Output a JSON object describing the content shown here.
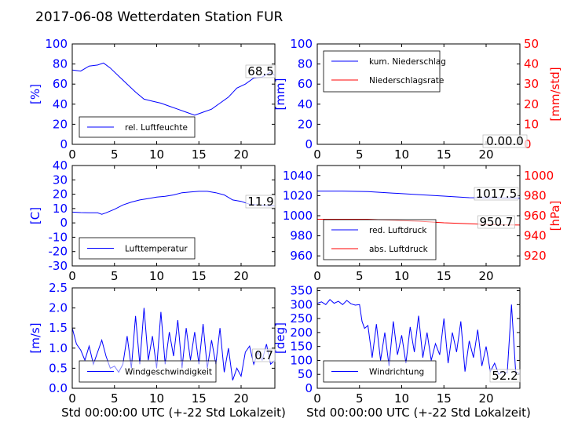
{
  "title": "2017-06-08 Wetterdaten Station FUR",
  "chart_data": [
    {
      "type": "line",
      "panel": "humidity",
      "xlim": [
        0,
        24
      ],
      "ylim": [
        0,
        100
      ],
      "xticks": [
        0,
        5,
        10,
        15,
        20
      ],
      "yticks": [
        0,
        20,
        40,
        60,
        80,
        100
      ],
      "ylabel": "[%]",
      "legend": "bottom-left",
      "last_value_label": "68.5",
      "series": [
        {
          "name": "rel. Luftfeuchte",
          "color": "#0000ff",
          "x": [
            0,
            1,
            2,
            3,
            3.7,
            4.5,
            5.5,
            6.5,
            7.5,
            8.5,
            9.5,
            10.5,
            11.5,
            12.5,
            13.5,
            14.5,
            15.5,
            16.5,
            17.5,
            18.5,
            19.5,
            20.5,
            21.5,
            22.5,
            23.5,
            24
          ],
          "y": [
            74,
            73,
            78,
            79,
            81,
            76,
            68,
            60,
            52,
            45,
            43,
            41,
            38,
            35,
            32,
            29,
            32,
            35,
            41,
            47,
            56,
            60,
            66,
            67,
            72,
            68.5
          ]
        }
      ]
    },
    {
      "type": "line",
      "panel": "precipitation",
      "xlim": [
        0,
        24
      ],
      "ylim": [
        0,
        100
      ],
      "ylim_right": [
        0,
        50
      ],
      "xticks": [
        0,
        5,
        10,
        15,
        20
      ],
      "yticks": [
        0,
        20,
        40,
        60,
        80,
        100
      ],
      "yticks_right": [
        0,
        10,
        20,
        30,
        40,
        50
      ],
      "ylabel": "[mm]",
      "ylabel_right": "[mm/std]",
      "legend": "top-left",
      "last_value_label": "0.00.0",
      "series": [
        {
          "name": "kum. Niederschlag",
          "color": "#0000ff",
          "axis": "left",
          "x": [
            0,
            24
          ],
          "y": [
            0,
            0
          ]
        },
        {
          "name": "Niederschlagsrate",
          "color": "#ff0000",
          "axis": "right",
          "x": [
            0,
            24
          ],
          "y": [
            0,
            0
          ]
        }
      ]
    },
    {
      "type": "line",
      "panel": "temperature",
      "xlim": [
        0,
        24
      ],
      "ylim": [
        -30,
        40
      ],
      "xticks": [
        0,
        5,
        10,
        15,
        20
      ],
      "yticks": [
        -30,
        -20,
        -10,
        0,
        10,
        20,
        30,
        40
      ],
      "ylabel": "[C]",
      "legend": "bottom-left",
      "last_value_label": "11.9",
      "series": [
        {
          "name": "Lufttemperatur",
          "color": "#0000ff",
          "x": [
            0,
            1,
            2,
            3,
            3.5,
            4,
            5,
            6,
            7,
            8,
            9,
            10,
            11,
            12,
            13,
            14,
            15,
            16,
            17,
            18,
            19,
            20,
            21,
            22,
            23,
            24
          ],
          "y": [
            7.5,
            7.2,
            7.0,
            7.0,
            6.0,
            7.0,
            9.5,
            12.5,
            14.5,
            16,
            17,
            18,
            18.5,
            19.5,
            21,
            21.5,
            22,
            22,
            21,
            19.5,
            16,
            15,
            13,
            12.5,
            12,
            11.9
          ]
        }
      ]
    },
    {
      "type": "line",
      "panel": "pressure",
      "xlim": [
        0,
        24
      ],
      "ylim": [
        950,
        1050
      ],
      "ylim_right": [
        910,
        1010
      ],
      "xticks": [
        0,
        5,
        10,
        15,
        20
      ],
      "yticks": [
        960,
        980,
        1000,
        1020,
        1040
      ],
      "yticks_right": [
        920,
        940,
        960,
        980,
        1000
      ],
      "ylabel_right": "[hPa]",
      "legend": "bottom-left",
      "last_value_labels": [
        "1017.5",
        "950.7"
      ],
      "series": [
        {
          "name": "red. Luftdruck",
          "color": "#0000ff",
          "axis": "left",
          "x": [
            0,
            3,
            6,
            9,
            12,
            15,
            18,
            21,
            24
          ],
          "y": [
            1024.5,
            1024.5,
            1024,
            1022.5,
            1021,
            1019.5,
            1018,
            1017.8,
            1017.5
          ]
        },
        {
          "name": "abs. Luftdruck",
          "color": "#ff0000",
          "axis": "right",
          "x": [
            0,
            3,
            6,
            9,
            12,
            15,
            18,
            21,
            24
          ],
          "y": [
            956.5,
            956.5,
            956.5,
            955.5,
            954.5,
            953,
            952,
            951,
            950.7
          ]
        }
      ]
    },
    {
      "type": "line",
      "panel": "wind-speed",
      "xlim": [
        0,
        24
      ],
      "ylim": [
        0,
        2.5
      ],
      "xticks": [
        0,
        5,
        10,
        15,
        20
      ],
      "yticks": [
        0.0,
        0.5,
        1.0,
        1.5,
        2.0,
        2.5
      ],
      "yticklabels": [
        "0.0",
        "0.5",
        "1.0",
        "1.5",
        "2.0",
        "2.5"
      ],
      "ylabel": "[m/s]",
      "xlabel": "Std 00:00:00 UTC (+-22 Std Lokalzeit)",
      "legend": "bottom-left",
      "last_value_label": "0.7",
      "series": [
        {
          "name": "Windgeschwindigkeit",
          "color": "#0000ff",
          "x": [
            0,
            0.5,
            1,
            1.5,
            2,
            2.5,
            3,
            3.5,
            4,
            4.5,
            5,
            5.5,
            6,
            6.5,
            7,
            7.5,
            8,
            8.5,
            9,
            9.5,
            10,
            10.5,
            11,
            11.5,
            12,
            12.5,
            13,
            13.5,
            14,
            14.5,
            15,
            15.5,
            16,
            16.5,
            17,
            17.5,
            18,
            18.5,
            19,
            19.5,
            20,
            20.5,
            21,
            21.5,
            22,
            22.5,
            23,
            23.5,
            24
          ],
          "y": [
            1.5,
            1.1,
            0.95,
            0.7,
            1.05,
            0.6,
            0.9,
            1.2,
            0.8,
            0.5,
            0.55,
            0.4,
            0.6,
            1.3,
            0.5,
            1.8,
            0.6,
            2.0,
            0.7,
            1.3,
            0.5,
            1.9,
            0.6,
            1.4,
            0.8,
            1.7,
            0.5,
            1.5,
            0.7,
            1.4,
            0.6,
            1.6,
            0.5,
            1.2,
            0.6,
            1.5,
            0.4,
            1.0,
            0.2,
            0.5,
            0.3,
            0.9,
            1.05,
            0.6,
            0.9,
            0.7,
            1.1,
            0.6,
            0.7
          ]
        }
      ]
    },
    {
      "type": "line",
      "panel": "wind-direction",
      "xlim": [
        0,
        24
      ],
      "ylim": [
        0,
        360
      ],
      "xticks": [
        0,
        5,
        10,
        15,
        20
      ],
      "yticks": [
        0,
        50,
        100,
        150,
        200,
        250,
        300,
        350
      ],
      "ylabel": "[deg]",
      "xlabel": "Std 00:00:00 UTC (+-22 Std Lokalzeit)",
      "legend": "bottom-left",
      "last_value_label": "52.2",
      "series": [
        {
          "name": "Windrichtung",
          "color": "#0000ff",
          "x": [
            0,
            0.5,
            1,
            1.5,
            2,
            2.5,
            3,
            3.5,
            4,
            4.5,
            5,
            5.3,
            5.6,
            6,
            6.5,
            7,
            7.5,
            8,
            8.5,
            9,
            9.5,
            10,
            10.5,
            11,
            11.5,
            12,
            12.5,
            13,
            13.5,
            14,
            14.5,
            15,
            15.5,
            16,
            16.5,
            17,
            17.5,
            18,
            18.5,
            19,
            19.5,
            20,
            20.5,
            21,
            21.5,
            22,
            22.5,
            23,
            23.5,
            24
          ],
          "y": [
            305,
            310,
            300,
            318,
            305,
            312,
            300,
            315,
            303,
            298,
            300,
            240,
            215,
            225,
            110,
            230,
            100,
            200,
            80,
            240,
            120,
            190,
            90,
            220,
            130,
            260,
            110,
            200,
            100,
            160,
            120,
            250,
            90,
            200,
            130,
            240,
            60,
            170,
            110,
            210,
            80,
            150,
            60,
            90,
            50,
            60,
            55,
            300,
            60,
            52.2
          ]
        }
      ]
    }
  ]
}
